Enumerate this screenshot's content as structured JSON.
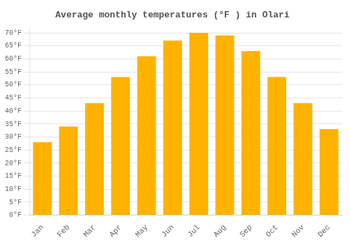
{
  "chart_data": {
    "type": "bar",
    "title": "Average monthly temperatures (°F ) in Olari",
    "categories": [
      "Jan",
      "Feb",
      "Mar",
      "Apr",
      "May",
      "Jun",
      "Jul",
      "Aug",
      "Sep",
      "Oct",
      "Nov",
      "Dec"
    ],
    "values": [
      28,
      34,
      43,
      53,
      61,
      67,
      70,
      69,
      63,
      53,
      43,
      33
    ],
    "color": "#FFB300",
    "ylim": [
      0,
      72
    ],
    "yticks": [
      {
        "value": 0,
        "label": "0°F"
      },
      {
        "value": 5,
        "label": "5°F"
      },
      {
        "value": 10,
        "label": "10°F"
      },
      {
        "value": 15,
        "label": "15°F"
      },
      {
        "value": 20,
        "label": "20°F"
      },
      {
        "value": 25,
        "label": "25°F"
      },
      {
        "value": 30,
        "label": "30°F"
      },
      {
        "value": 35,
        "label": "35°F"
      },
      {
        "value": 40,
        "label": "40°F"
      },
      {
        "value": 45,
        "label": "45°F"
      },
      {
        "value": 50,
        "label": "50°F"
      },
      {
        "value": 55,
        "label": "55°F"
      },
      {
        "value": 60,
        "label": "60°F"
      },
      {
        "value": 65,
        "label": "65°F"
      },
      {
        "value": 70,
        "label": "70°F"
      }
    ],
    "grid": true
  }
}
